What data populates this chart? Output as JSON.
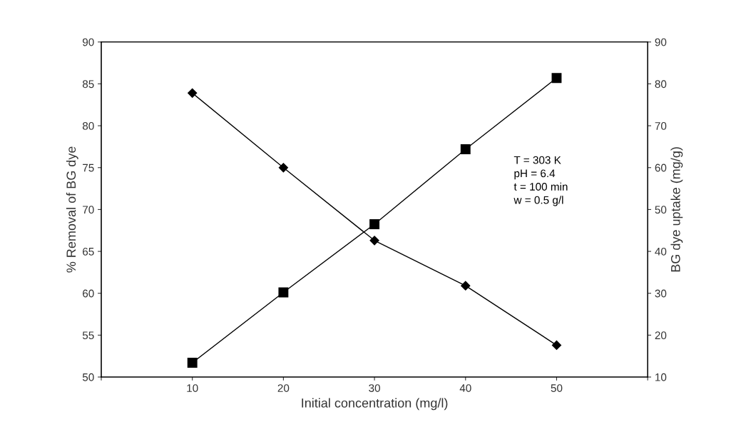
{
  "chart_data": {
    "type": "line",
    "xlabel": "Initial concentration (mg/l)",
    "ylabel": "% Removal of BG dye",
    "y2label": "BG dye uptake (mg/g)",
    "x": [
      10,
      20,
      30,
      40,
      50
    ],
    "series": [
      {
        "color": "#000000",
        "marker": "diamond",
        "values": [
          83.9,
          75.0,
          66.3,
          60.9,
          53.8
        ]
      },
      {
        "color": "#000000",
        "marker": "square",
        "axis": "y2",
        "values": [
          13.4,
          30.2,
          46.5,
          64.4,
          81.4
        ]
      }
    ],
    "xlim": [
      0,
      60
    ],
    "xticks": [
      {
        "value": 0,
        "label": null
      },
      10,
      20,
      30,
      40,
      50,
      {
        "value": 60,
        "label": null
      }
    ],
    "ylim": [
      50,
      90
    ],
    "yticks": [
      50,
      55,
      60,
      65,
      70,
      75,
      80,
      85,
      90
    ],
    "y2lim": [
      10,
      90
    ],
    "y2ticks": [
      10,
      20,
      30,
      40,
      50,
      60,
      70,
      80,
      90
    ],
    "line_style": "solid",
    "grid": false,
    "legend": false,
    "annotations": [
      "T = 303 K\npH = 6.4\nt = 100 min\nw = 0.5 g/l"
    ]
  }
}
